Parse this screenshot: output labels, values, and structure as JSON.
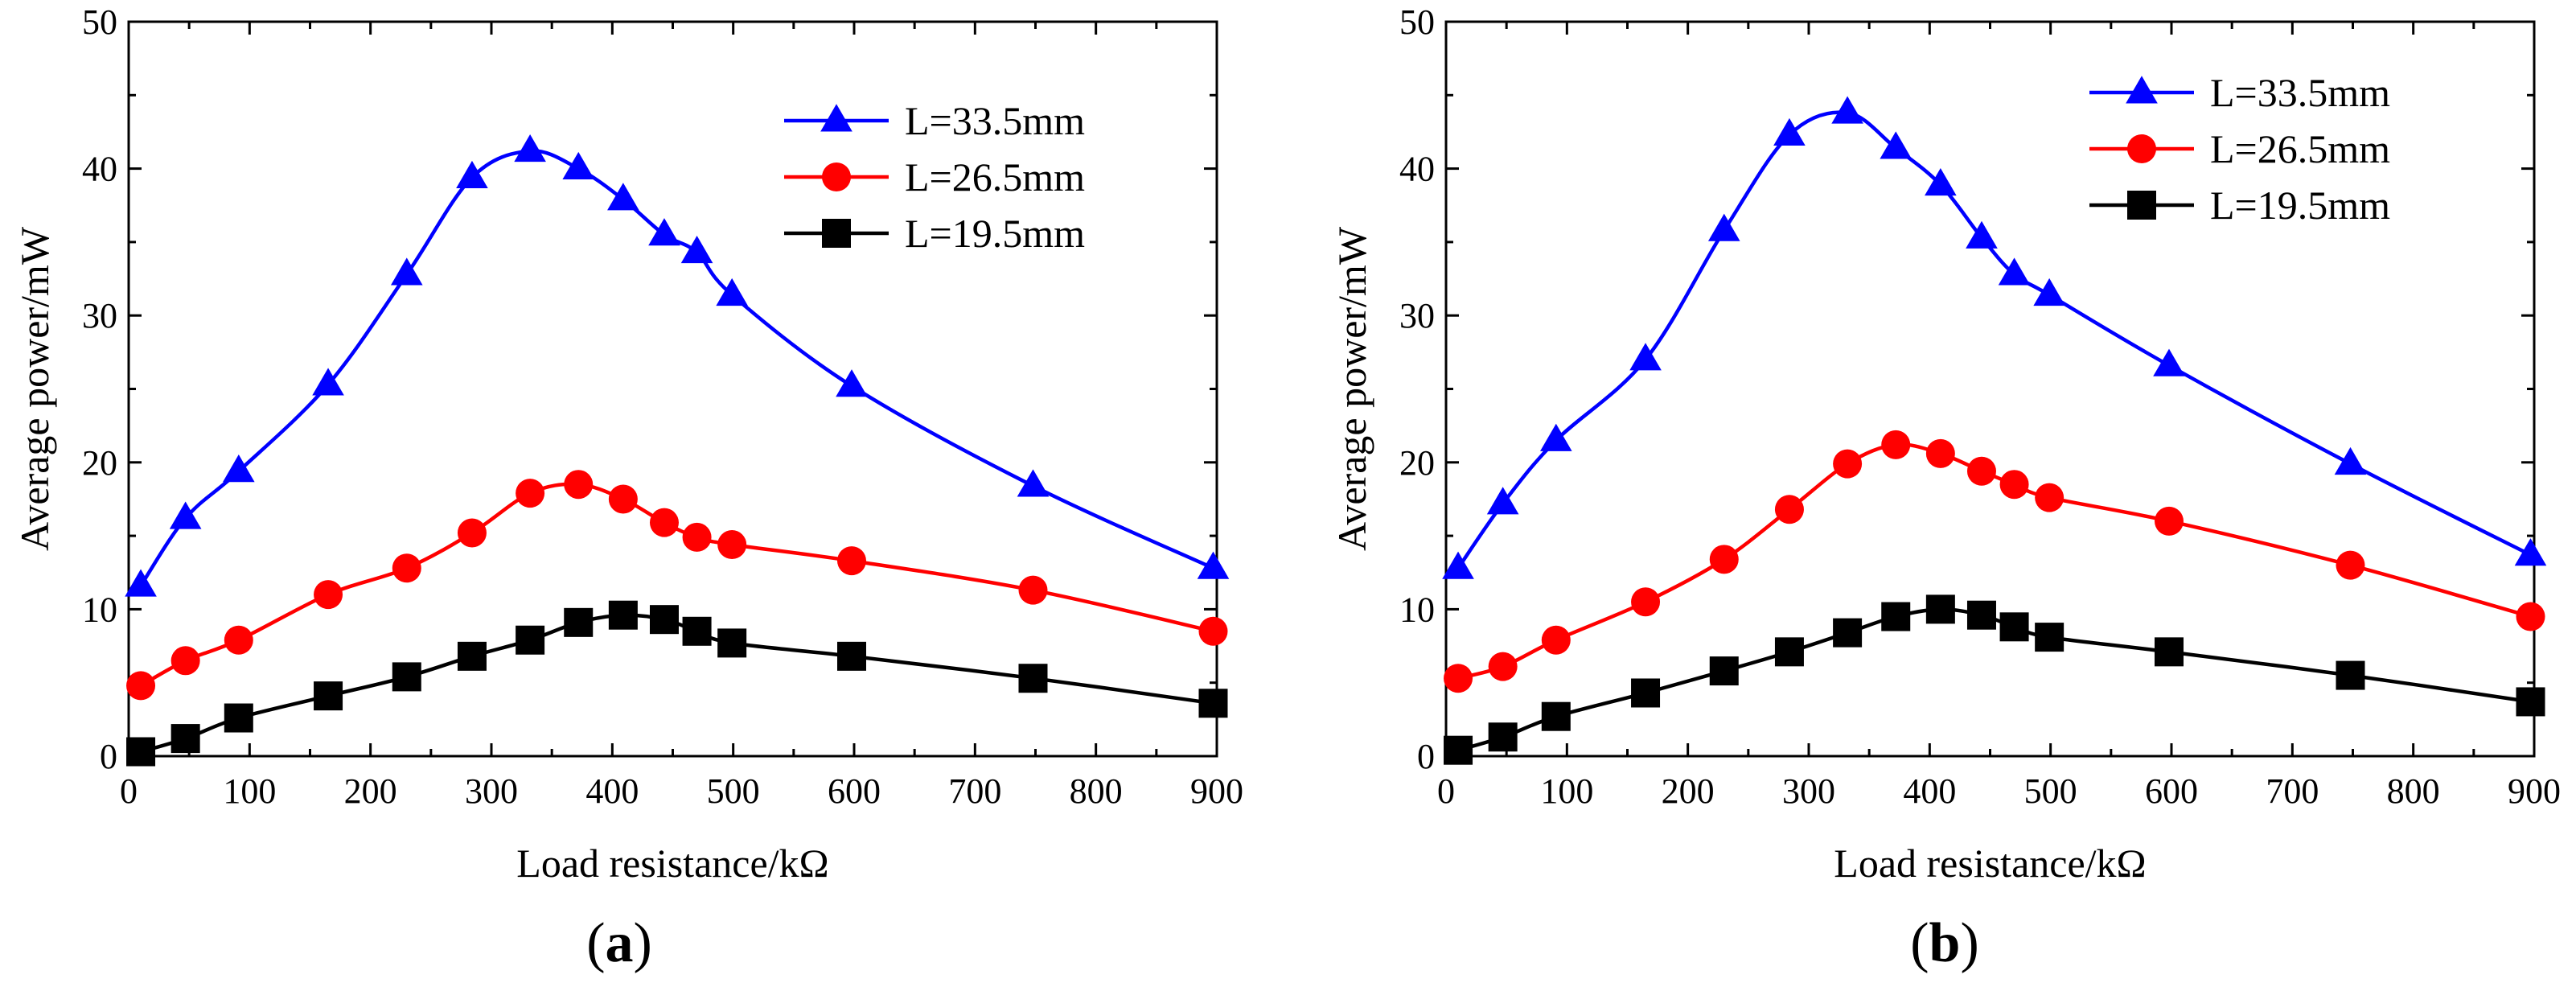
{
  "chart_data": [
    {
      "type": "line",
      "panel_label": "a",
      "title": "",
      "xlabel": "Load resistance/kΩ",
      "ylabel": "Average power/mW",
      "xlim": [
        0,
        900
      ],
      "ylim": [
        0,
        50
      ],
      "xticks": [
        0,
        100,
        200,
        300,
        400,
        500,
        600,
        700,
        800,
        900
      ],
      "yticks": [
        0,
        10,
        20,
        30,
        40,
        50
      ],
      "legend_position": "top-right",
      "x": [
        10,
        47,
        91,
        165,
        230,
        284,
        332,
        372,
        409,
        443,
        470,
        499,
        598,
        748,
        897
      ],
      "series": [
        {
          "name": "L=33.5mm",
          "color": "#0000ff",
          "marker": "triangle",
          "values": [
            11.6,
            16.2,
            19.4,
            25.3,
            32.8,
            39.4,
            41.2,
            40.0,
            37.9,
            35.5,
            34.3,
            31.4,
            25.2,
            18.4,
            12.8
          ]
        },
        {
          "name": "L=26.5mm",
          "color": "#ff0000",
          "marker": "circle",
          "values": [
            4.8,
            6.5,
            7.9,
            11.0,
            12.8,
            15.2,
            17.9,
            18.5,
            17.5,
            15.9,
            14.9,
            14.4,
            13.3,
            11.3,
            8.5
          ]
        },
        {
          "name": "L=19.5mm",
          "color": "#000000",
          "marker": "square",
          "values": [
            0.3,
            1.2,
            2.6,
            4.1,
            5.4,
            6.8,
            7.9,
            9.1,
            9.6,
            9.3,
            8.5,
            7.7,
            6.8,
            5.3,
            3.6
          ]
        }
      ]
    },
    {
      "type": "line",
      "panel_label": "b",
      "title": "",
      "xlabel": "Load resistance/kΩ",
      "ylabel": "Average power/mW",
      "xlim": [
        0,
        900
      ],
      "ylim": [
        0,
        50
      ],
      "xticks": [
        0,
        100,
        200,
        300,
        400,
        500,
        600,
        700,
        800,
        900
      ],
      "yticks": [
        0,
        10,
        20,
        30,
        40,
        50
      ],
      "legend_position": "top-right",
      "x": [
        10,
        47,
        91,
        165,
        230,
        284,
        332,
        372,
        409,
        443,
        470,
        499,
        598,
        748,
        897
      ],
      "series": [
        {
          "name": "L=33.5mm",
          "color": "#0000ff",
          "marker": "triangle",
          "values": [
            12.8,
            17.2,
            21.5,
            27.0,
            35.8,
            42.3,
            43.8,
            41.4,
            38.9,
            35.3,
            32.8,
            31.4,
            26.6,
            19.9,
            13.7
          ]
        },
        {
          "name": "L=26.5mm",
          "color": "#ff0000",
          "marker": "circle",
          "values": [
            5.3,
            6.1,
            7.9,
            10.5,
            13.4,
            16.8,
            19.9,
            21.2,
            20.6,
            19.4,
            18.5,
            17.6,
            16.0,
            13.0,
            9.5
          ]
        },
        {
          "name": "L=19.5mm",
          "color": "#000000",
          "marker": "square",
          "values": [
            0.4,
            1.3,
            2.7,
            4.3,
            5.8,
            7.1,
            8.4,
            9.5,
            10.0,
            9.6,
            8.8,
            8.1,
            7.1,
            5.5,
            3.7
          ]
        }
      ]
    }
  ]
}
